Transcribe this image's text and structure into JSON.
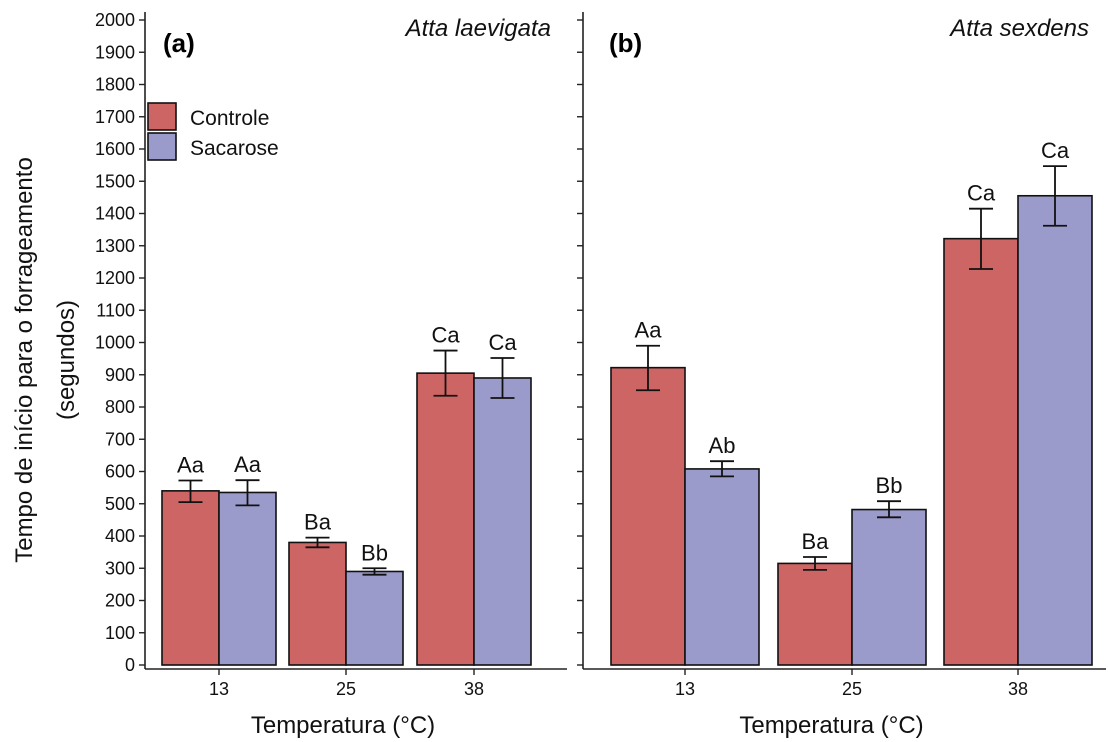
{
  "chart_data": {
    "type": "bar",
    "ylabel_line1": "Tempo de início para o forrageamento",
    "ylabel_line2": "(segundos)",
    "xlabel": "Temperatura (°C)",
    "ylim": [
      0,
      2000
    ],
    "yticks": [
      0,
      100,
      200,
      300,
      400,
      500,
      600,
      700,
      800,
      900,
      1000,
      1100,
      1200,
      1300,
      1400,
      1500,
      1600,
      1700,
      1800,
      1900,
      2000
    ],
    "categories": [
      "13",
      "25",
      "38"
    ],
    "legend": {
      "position": "top-left",
      "entries": [
        {
          "name": "Controle",
          "color": "#cd6565"
        },
        {
          "name": "Sacarose",
          "color": "#9b9bcb"
        }
      ]
    },
    "panels": [
      {
        "tag": "(a)",
        "species": "Atta laevigata",
        "series": [
          {
            "name": "Controle",
            "color": "#cd6565",
            "values": [
              540,
              380,
              905
            ],
            "err_low": [
              505,
              365,
              835
            ],
            "err_high": [
              572,
              395,
              975
            ],
            "labels": [
              "Aa",
              "Ba",
              "Ca"
            ]
          },
          {
            "name": "Sacarose",
            "color": "#9b9bcb",
            "values": [
              535,
              290,
              890
            ],
            "err_low": [
              495,
              280,
              828
            ],
            "err_high": [
              573,
              300,
              952
            ],
            "labels": [
              "Aa",
              "Bb",
              "Ca"
            ]
          }
        ]
      },
      {
        "tag": "(b)",
        "species": "Atta sexdens",
        "series": [
          {
            "name": "Controle",
            "color": "#cd6565",
            "values": [
              922,
              315,
              1322
            ],
            "err_low": [
              852,
              295,
              1228
            ],
            "err_high": [
              990,
              335,
              1415
            ],
            "labels": [
              "Aa",
              "Ba",
              "Ca"
            ]
          },
          {
            "name": "Sacarose",
            "color": "#9b9bcb",
            "values": [
              608,
              482,
              1455
            ],
            "err_low": [
              585,
              458,
              1362
            ],
            "err_high": [
              632,
              508,
              1547
            ],
            "labels": [
              "Ab",
              "Bb",
              "Ca"
            ]
          }
        ]
      }
    ]
  }
}
